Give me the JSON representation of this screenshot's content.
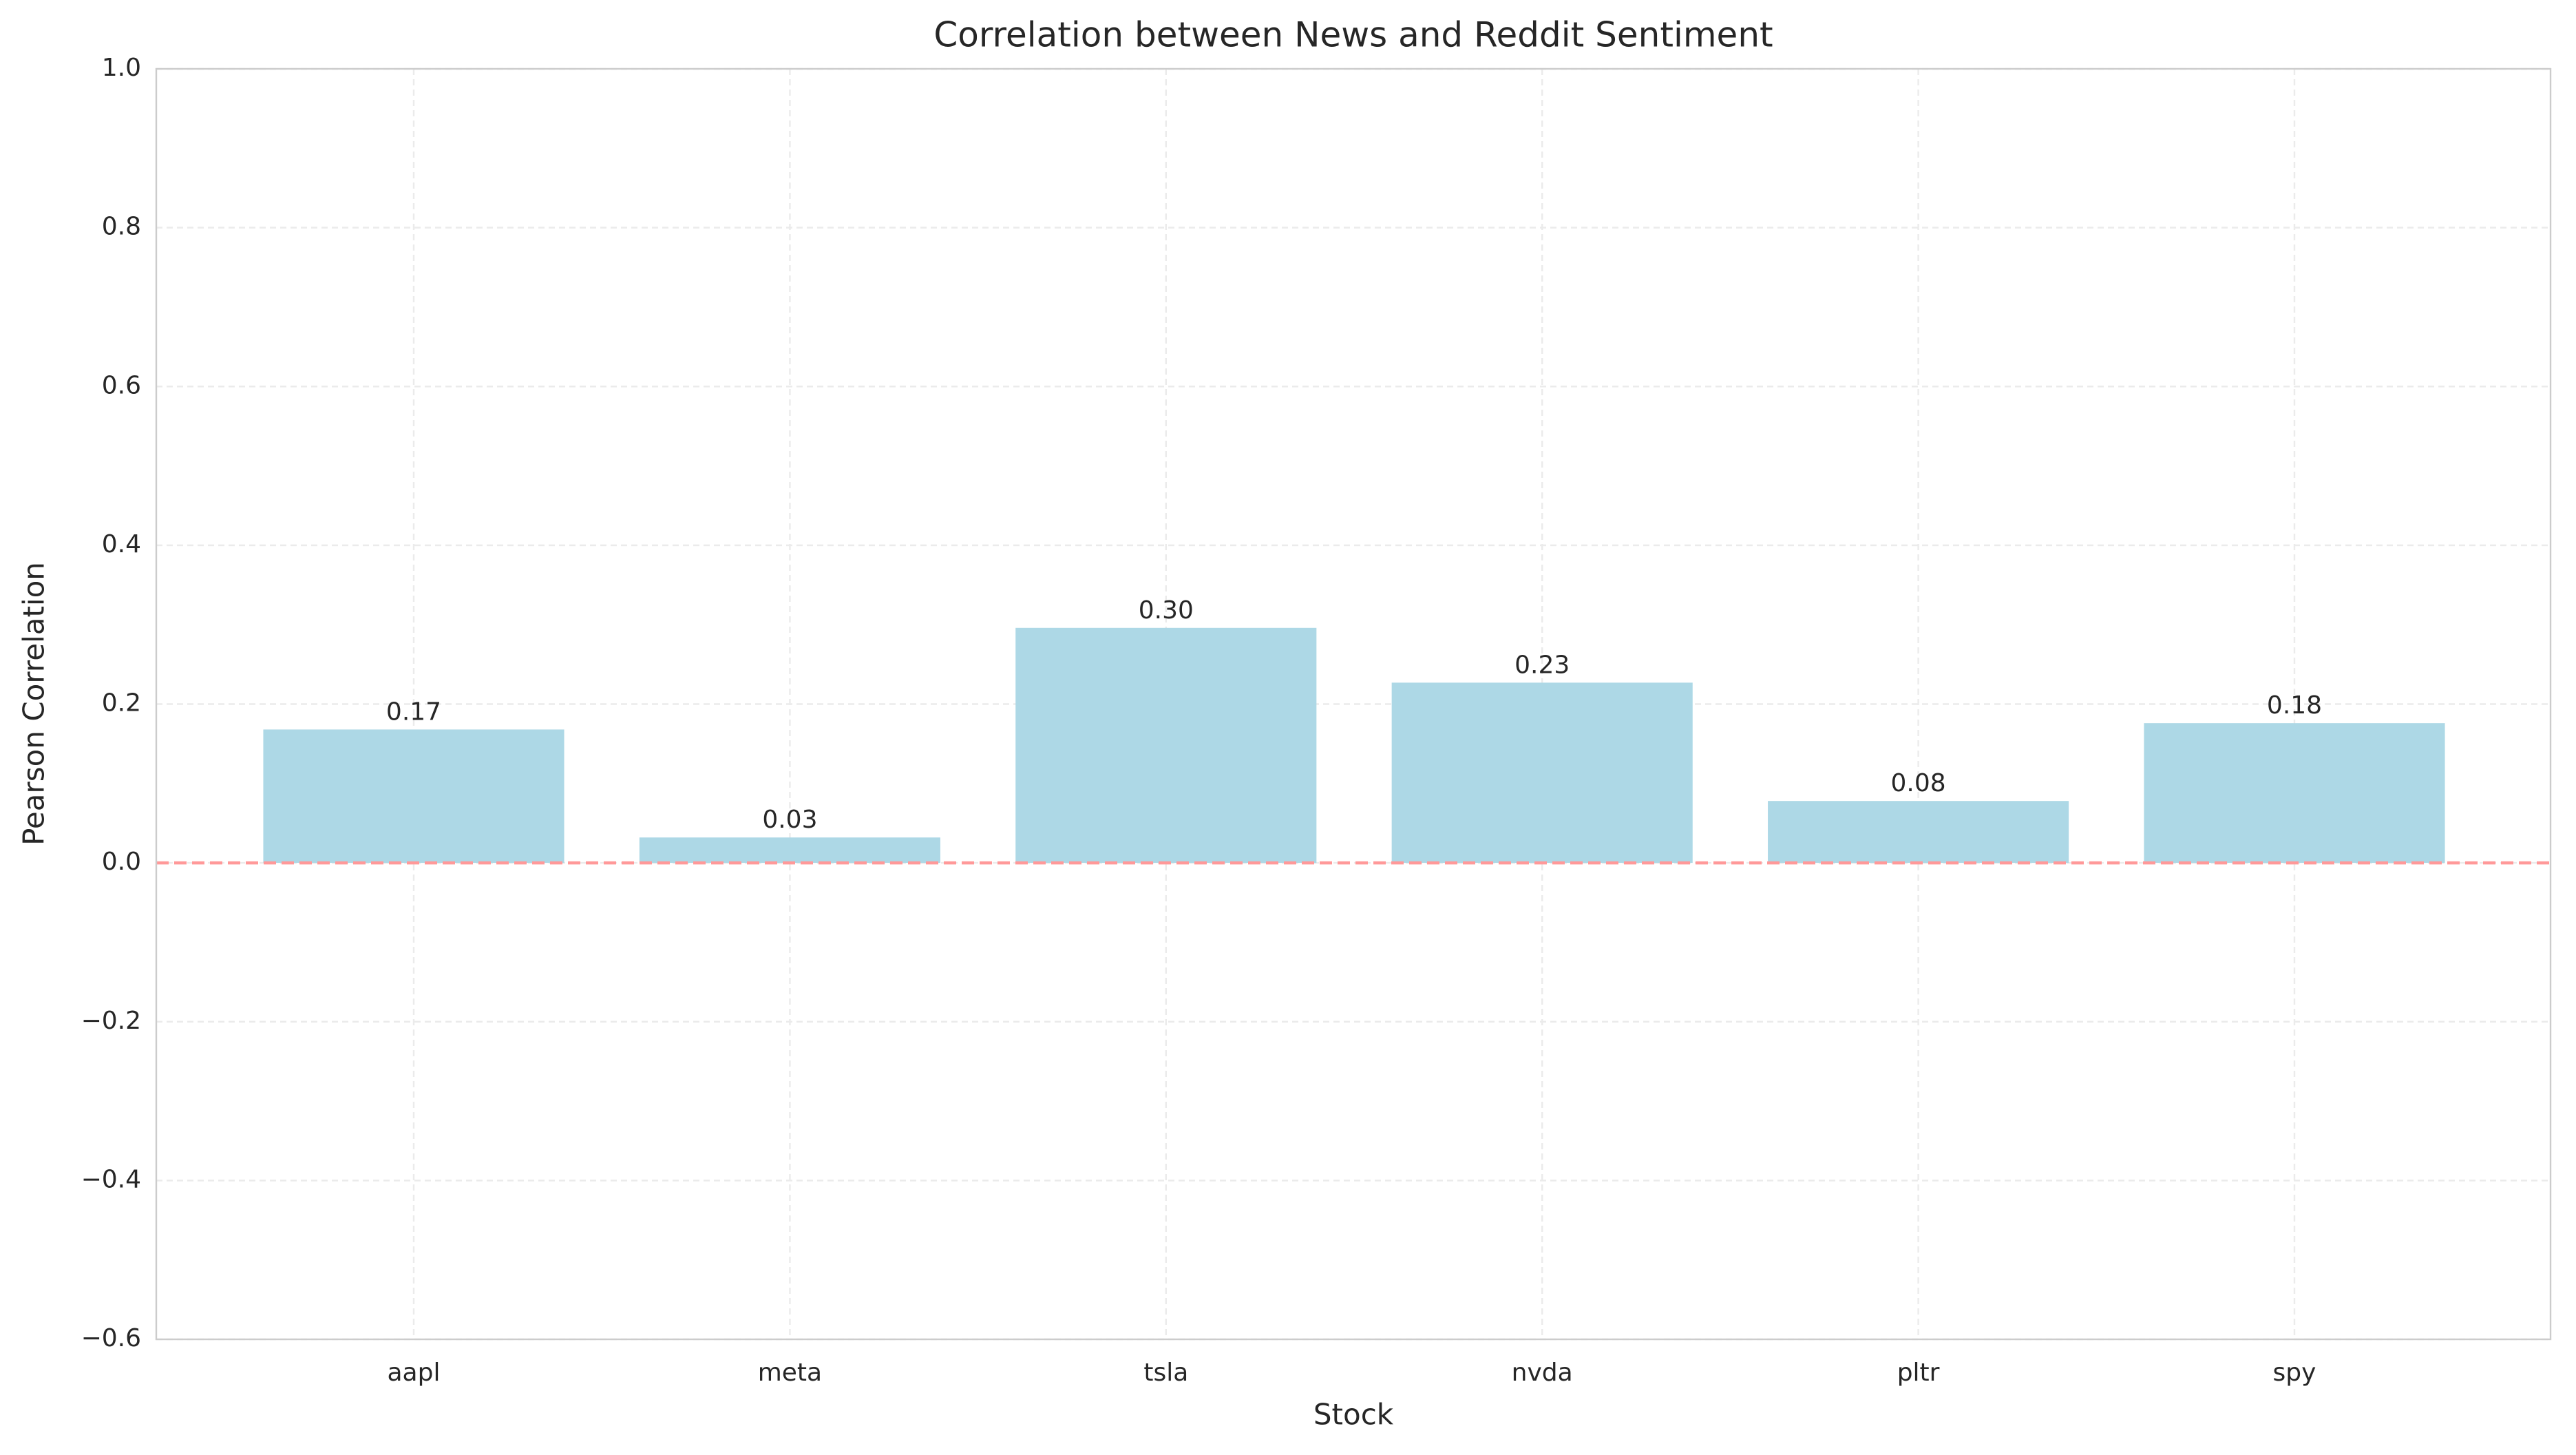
{
  "chart_data": {
    "type": "bar",
    "title": "Correlation between News and Reddit Sentiment",
    "x_label": "Stock",
    "y_label": "Pearson Correlation",
    "categories": [
      "aapl",
      "meta",
      "tsla",
      "nvda",
      "pltr",
      "spy"
    ],
    "values": [
      0.168,
      0.032,
      0.296,
      0.227,
      0.078,
      0.176
    ],
    "value_labels": [
      "0.17",
      "0.03",
      "0.30",
      "0.23",
      "0.08",
      "0.18"
    ],
    "color": "#add8e6",
    "ylim": [
      -0.6,
      1.0
    ],
    "yticks": [
      {
        "value": -0.6,
        "label": "−0.6"
      },
      {
        "value": -0.4,
        "label": "−0.4"
      },
      {
        "value": -0.2,
        "label": "−0.2"
      },
      {
        "value": 0,
        "label": "0.0"
      },
      {
        "value": 0.2,
        "label": "0.2"
      },
      {
        "value": 0.4,
        "label": "0.4"
      },
      {
        "value": 0.6,
        "label": "0.6"
      },
      {
        "value": 0.8,
        "label": "0.8"
      },
      {
        "value": 1.0,
        "label": "1.0"
      }
    ],
    "grid": true,
    "reference_line": {
      "value": 0,
      "color": "#ff9999"
    }
  }
}
